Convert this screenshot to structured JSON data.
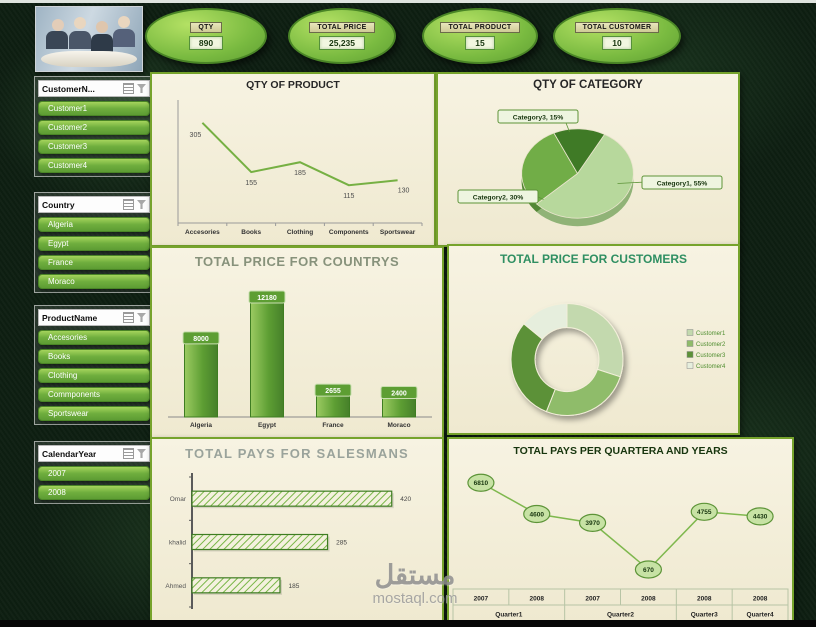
{
  "kpis": [
    {
      "label": "QTY",
      "value": "890"
    },
    {
      "label": "TOTAL PRICE",
      "value": "25,235"
    },
    {
      "label": "TOTAL PRODUCT",
      "value": "15"
    },
    {
      "label": "TOTAL CUSTOMER",
      "value": "10"
    }
  ],
  "slicers": [
    {
      "title": "CustomerN...",
      "items": [
        "Customer1",
        "Customer2",
        "Customer3",
        "Customer4"
      ]
    },
    {
      "title": "Country",
      "items": [
        "Algeria",
        "Egypt",
        "France",
        "Moraco"
      ]
    },
    {
      "title": "ProductName",
      "items": [
        "Accesories",
        "Books",
        "Clothing",
        "Commponents",
        "Sportswear"
      ]
    },
    {
      "title": "CalendarYear",
      "items": [
        "2007",
        "2008"
      ]
    }
  ],
  "watermark": {
    "arabic": "مستقل",
    "latin": "mostaql.com"
  },
  "colors": {
    "accent_green": "#6fae3e",
    "dark_green_border": "#3e7d22",
    "panel_background": "#f3efda",
    "panel_border": "#76a32c",
    "page_background": "#0e1f12",
    "slicer_item_top": "#a5d45c",
    "slicer_item_bottom": "#5d9c33"
  },
  "chart_data": [
    {
      "id": "qty-of-product",
      "type": "line",
      "title": "QTY OF PRODUCT",
      "categories": [
        "Accesories",
        "Books",
        "Clothing",
        "Components",
        "Sportswear"
      ],
      "values": [
        305,
        155,
        185,
        115,
        130
      ],
      "ylim": [
        0,
        350
      ],
      "line_color": "#76b043",
      "grid": false,
      "legend": "none"
    },
    {
      "id": "qty-of-category",
      "type": "pie",
      "title": "QTY OF CATEGORY",
      "labels": [
        "Category1",
        "Category2",
        "Category3"
      ],
      "values": [
        55,
        30,
        15
      ],
      "label_texts": [
        "Category1, 55%",
        "Category2, 30%",
        "Category3, 15%"
      ],
      "colors": [
        "#b7d89c",
        "#71ad47",
        "#3f7a26"
      ],
      "colors_dark": [
        "#90b377",
        "#538736",
        "#2d5a1b"
      ]
    },
    {
      "id": "total-price-for-countrys",
      "type": "bar",
      "title": "TOTAL PRICE FOR COUNTRYS",
      "categories": [
        "Algeria",
        "Egypt",
        "France",
        "Moraco"
      ],
      "values": [
        8000,
        12180,
        2655,
        2400
      ],
      "ylim": [
        0,
        13000
      ],
      "bar_color": "#5d9e33"
    },
    {
      "id": "total-price-for-customers",
      "type": "donut",
      "title": "TOTAL PRICE FOR CUSTOMERS",
      "legend": [
        "Customer1",
        "Customer2",
        "Customer3",
        "Customer4"
      ],
      "values": [
        30,
        26,
        30,
        14
      ],
      "note": "segment sizes estimated from image; no data labels shown",
      "colors": [
        "#c3d9ae",
        "#8fbc6a",
        "#5c9138",
        "#e6eedd"
      ],
      "legend_position": "right"
    },
    {
      "id": "total-pays-for-salesmans",
      "type": "hbar",
      "title": "TOTAL PAYS FOR SALESMANS",
      "categories": [
        "Omar",
        "khalid",
        "Ahmed"
      ],
      "values": [
        420,
        285,
        185
      ],
      "xlim": [
        0,
        450
      ]
    },
    {
      "id": "total-pays-per-quartera-and-years",
      "type": "line2",
      "title": "TOTAL PAYS PER QUARTERA AND YEARS",
      "x_years": [
        "2007",
        "2008",
        "2007",
        "2008",
        "2008",
        "2008"
      ],
      "quarter_groups": [
        {
          "label": "Quarter1",
          "span": 2
        },
        {
          "label": "Quarter2",
          "span": 2
        },
        {
          "label": "Quarter3",
          "span": 1
        },
        {
          "label": "Quarter4",
          "span": 1
        }
      ],
      "values": [
        6810,
        4600,
        3970,
        670,
        4755,
        4430
      ],
      "ylim": [
        0,
        7500
      ]
    }
  ]
}
